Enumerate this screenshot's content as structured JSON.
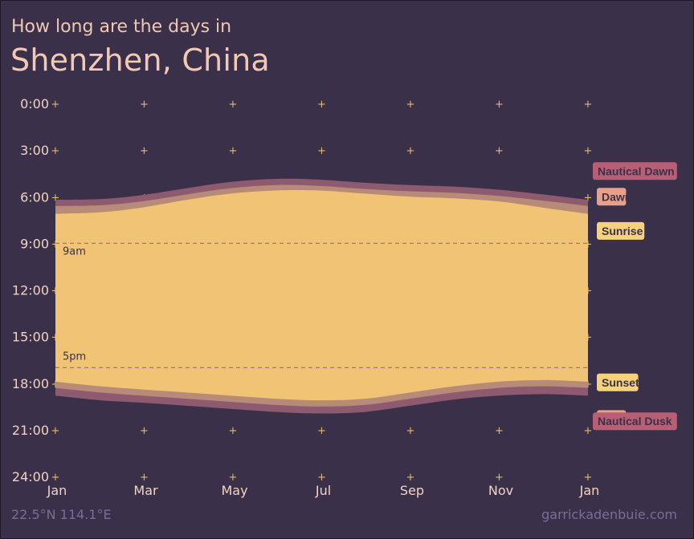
{
  "header": {
    "subtitle": "How long are the days in",
    "title": "Shenzhen, China"
  },
  "footer": {
    "coords": "22.5°N 114.1°E",
    "credit": "garrickadenbuie.com"
  },
  "colors": {
    "background": "#3b3049",
    "daylight": "#f0c474",
    "twilight_civil": "#b88a78",
    "twilight_nautical": "#8e5a70",
    "legend_sunrise": "#f7d27c",
    "legend_dawn": "#e8a088",
    "legend_nautical": "#b95f75"
  },
  "chart_data": {
    "type": "area",
    "x_axis": {
      "ticks": [
        "Jan",
        "Mar",
        "May",
        "Jul",
        "Sep",
        "Nov",
        "Jan"
      ],
      "domain_days": [
        1,
        366
      ]
    },
    "y_axis": {
      "ticks": [
        "0:00",
        "3:00",
        "6:00",
        "9:00",
        "12:00",
        "15:00",
        "18:00",
        "21:00",
        "24:00"
      ],
      "range_hours": [
        0,
        24
      ],
      "inverted": true
    },
    "reference_lines": [
      {
        "label": "9am",
        "hour": 9
      },
      {
        "label": "5pm",
        "hour": 17
      }
    ],
    "x_days": [
      1,
      32,
      60,
      91,
      121,
      152,
      182,
      213,
      244,
      274,
      305,
      335,
      366
    ],
    "series": [
      {
        "name": "Nautical Dawn",
        "values": [
          6.2,
          6.15,
          5.9,
          5.45,
          5.05,
          4.85,
          4.9,
          5.1,
          5.25,
          5.35,
          5.55,
          5.85,
          6.2
        ]
      },
      {
        "name": "Dawn",
        "values": [
          6.6,
          6.55,
          6.3,
          5.85,
          5.45,
          5.25,
          5.3,
          5.5,
          5.65,
          5.75,
          5.95,
          6.25,
          6.6
        ]
      },
      {
        "name": "Sunrise",
        "values": [
          7.1,
          7.0,
          6.7,
          6.2,
          5.8,
          5.6,
          5.6,
          5.8,
          6.0,
          6.1,
          6.3,
          6.7,
          7.1
        ]
      },
      {
        "name": "Sunset",
        "values": [
          17.9,
          18.2,
          18.4,
          18.6,
          18.8,
          19.0,
          19.1,
          19.0,
          18.6,
          18.2,
          17.9,
          17.8,
          17.9
        ]
      },
      {
        "name": "Dusk",
        "values": [
          18.3,
          18.6,
          18.8,
          19.0,
          19.2,
          19.4,
          19.5,
          19.4,
          19.0,
          18.6,
          18.3,
          18.2,
          18.3
        ]
      },
      {
        "name": "Nautical Dusk",
        "values": [
          18.8,
          19.1,
          19.25,
          19.45,
          19.65,
          19.85,
          19.95,
          19.85,
          19.45,
          19.05,
          18.8,
          18.7,
          18.8
        ]
      }
    ],
    "legend_placement": "right"
  }
}
